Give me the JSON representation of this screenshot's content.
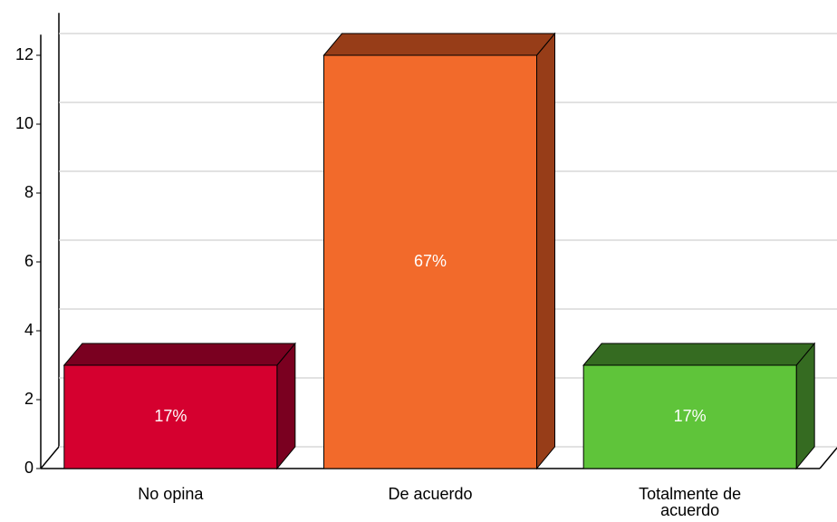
{
  "chart_data": {
    "type": "bar3d",
    "categories": [
      "No opina",
      "De acuerdo",
      "Totalmente de acuerdo"
    ],
    "values": [
      3,
      12,
      3
    ],
    "percent_labels": [
      "17%",
      "67%",
      "17%"
    ],
    "colors": [
      "#d5002f",
      "#f26a2b",
      "#5fc43a"
    ],
    "shade_colors": [
      "#7a0020",
      "#973d18",
      "#356b21"
    ],
    "ylim": [
      0,
      12.6
    ],
    "yticks": [
      0,
      2,
      4,
      6,
      8,
      10,
      12
    ],
    "grid": true
  }
}
